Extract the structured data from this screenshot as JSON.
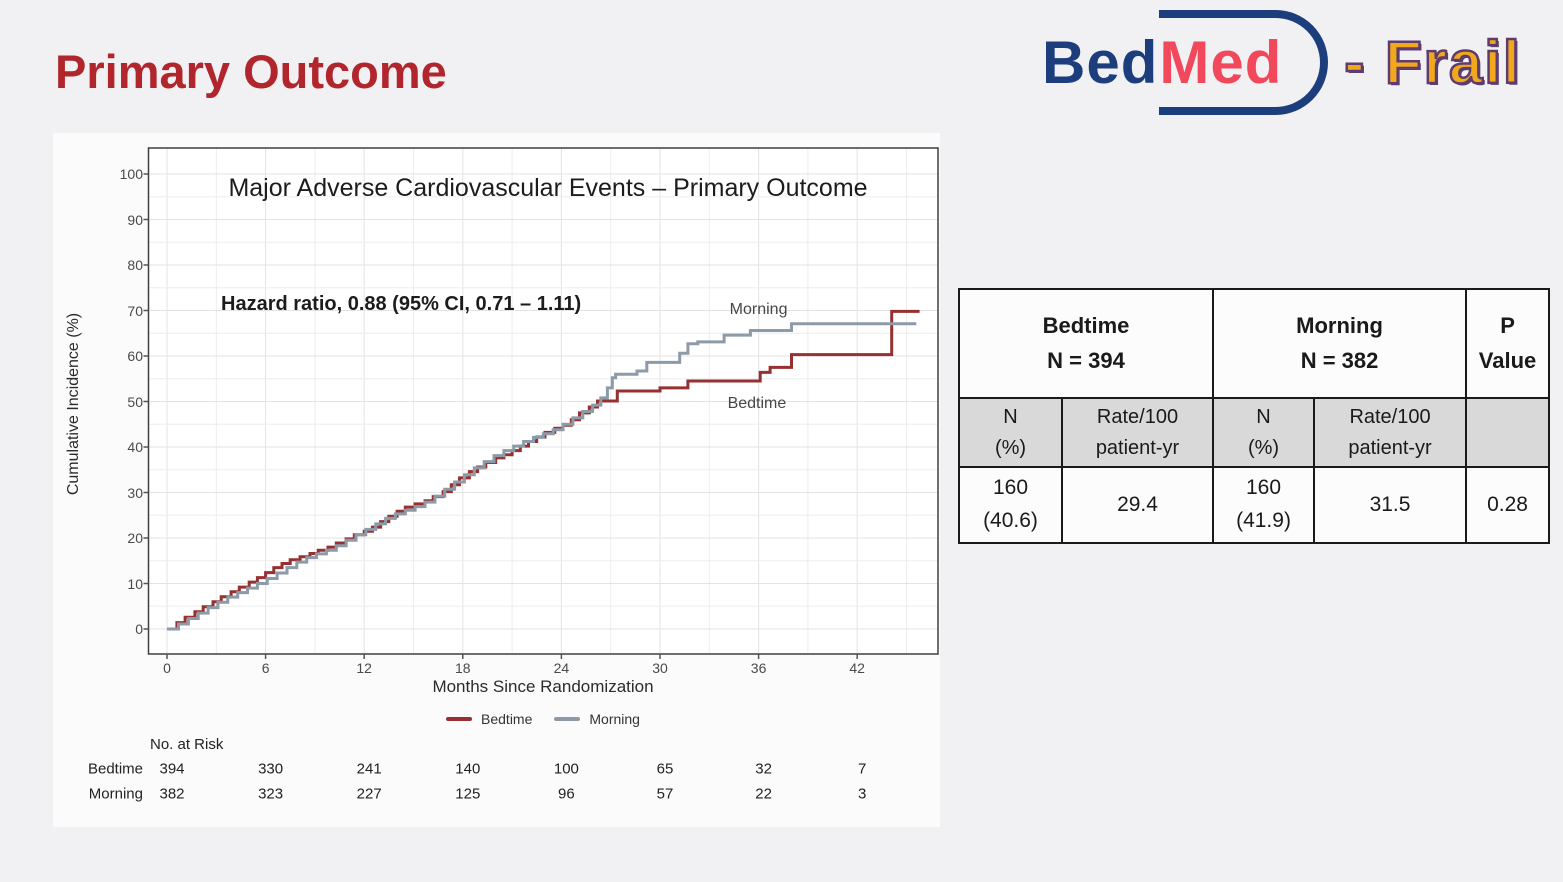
{
  "page": {
    "title": "Primary Outcome"
  },
  "logo": {
    "bed": "Bed",
    "med": "Med",
    "suffix": "- Frail"
  },
  "colors": {
    "slide_title": "#b1262d",
    "logo_navy": "#1d3e7c",
    "logo_red": "#f2485c",
    "logo_gold": "#f2a81d",
    "bedtime_line": "#963031",
    "morning_line": "#8d9aa7",
    "subheader_bg": "#d9d9d9"
  },
  "chart_data": {
    "type": "line",
    "title": "Major Adverse Cardiovascular Events – Primary Outcome",
    "annotation": "Hazard ratio, 0.88 (95% CI, 0.71 – 1.11)",
    "xlabel": "Months Since Randomization",
    "ylabel": "Cumulative Incidence (%)",
    "xlim": [
      0,
      46.9
    ],
    "ylim": [
      0,
      100
    ],
    "x_ticks": [
      0,
      6,
      12,
      18,
      24,
      30,
      36,
      42
    ],
    "y_ticks": [
      0,
      10,
      20,
      30,
      40,
      50,
      60,
      70,
      80,
      90,
      100
    ],
    "grid": true,
    "legend_position": "bottom",
    "series": [
      {
        "name": "Bedtime",
        "color": "#963031",
        "label_pos": {
          "x": 35.9,
          "y": 49.5
        },
        "points": [
          [
            0,
            0
          ],
          [
            0.6,
            1.4
          ],
          [
            1.1,
            2.6
          ],
          [
            1.7,
            3.8
          ],
          [
            2.2,
            4.9
          ],
          [
            2.8,
            6
          ],
          [
            3.3,
            7.1
          ],
          [
            3.9,
            8.2
          ],
          [
            4.4,
            9.2
          ],
          [
            5,
            10.3
          ],
          [
            5.5,
            11.3
          ],
          [
            6,
            12.4
          ],
          [
            6.5,
            13.5
          ],
          [
            7,
            14.4
          ],
          [
            7.5,
            15.2
          ],
          [
            8.1,
            15.9
          ],
          [
            8.7,
            16.6
          ],
          [
            9.2,
            17.3
          ],
          [
            9.8,
            18
          ],
          [
            10.3,
            18.9
          ],
          [
            10.9,
            19.8
          ],
          [
            11.4,
            20.7
          ],
          [
            12,
            21.5
          ],
          [
            12.5,
            22.4
          ],
          [
            13,
            23.6
          ],
          [
            13.5,
            24.8
          ],
          [
            14,
            25.9
          ],
          [
            14.5,
            26.8
          ],
          [
            15.1,
            27.5
          ],
          [
            15.7,
            28.2
          ],
          [
            16.2,
            29.1
          ],
          [
            16.8,
            30.2
          ],
          [
            17.3,
            31.7
          ],
          [
            17.8,
            33.2
          ],
          [
            18.4,
            34.6
          ],
          [
            18.9,
            35.6
          ],
          [
            19.4,
            36.6
          ],
          [
            20,
            37.6
          ],
          [
            20.5,
            38.3
          ],
          [
            21,
            39.2
          ],
          [
            21.5,
            40.2
          ],
          [
            22,
            41.2
          ],
          [
            22.5,
            42.2
          ],
          [
            23,
            43.2
          ],
          [
            23.6,
            44.1
          ],
          [
            24.1,
            44.8
          ],
          [
            24.6,
            46
          ],
          [
            25.1,
            47.5
          ],
          [
            25.7,
            48.8
          ],
          [
            26.2,
            50.1
          ],
          [
            27.4,
            52.3
          ],
          [
            30,
            53
          ],
          [
            31.7,
            54.5
          ],
          [
            36.1,
            56.4
          ],
          [
            36.7,
            57.5
          ],
          [
            38,
            60.3
          ],
          [
            44.1,
            69.8
          ],
          [
            45.8,
            69.8
          ]
        ]
      },
      {
        "name": "Morning",
        "color": "#8d9aa7",
        "label_pos": {
          "x": 36,
          "y": 70.2
        },
        "points": [
          [
            0,
            0
          ],
          [
            0.7,
            1.1
          ],
          [
            1.3,
            2.3
          ],
          [
            1.9,
            3.5
          ],
          [
            2.5,
            4.7
          ],
          [
            3.1,
            5.9
          ],
          [
            3.7,
            7
          ],
          [
            4.3,
            8
          ],
          [
            4.9,
            9
          ],
          [
            5.5,
            10
          ],
          [
            6.1,
            11.1
          ],
          [
            6.7,
            12.3
          ],
          [
            7.3,
            13.5
          ],
          [
            7.9,
            14.7
          ],
          [
            8.5,
            15.7
          ],
          [
            9.1,
            16.5
          ],
          [
            9.7,
            17.3
          ],
          [
            10.3,
            18.3
          ],
          [
            10.9,
            19.5
          ],
          [
            11.5,
            20.7
          ],
          [
            12.1,
            21.9
          ],
          [
            12.7,
            23.1
          ],
          [
            13.3,
            24.3
          ],
          [
            13.9,
            25.3
          ],
          [
            14.5,
            26.1
          ],
          [
            15.1,
            26.9
          ],
          [
            15.7,
            27.9
          ],
          [
            16.3,
            29.2
          ],
          [
            16.9,
            30.7
          ],
          [
            17.5,
            32.3
          ],
          [
            18.1,
            33.9
          ],
          [
            18.7,
            35.4
          ],
          [
            19.3,
            36.8
          ],
          [
            19.9,
            38.1
          ],
          [
            20.5,
            39.2
          ],
          [
            21.1,
            40.2
          ],
          [
            21.7,
            41.2
          ],
          [
            22.3,
            42.1
          ],
          [
            22.9,
            42.9
          ],
          [
            23.5,
            43.8
          ],
          [
            24.1,
            45
          ],
          [
            24.7,
            46.4
          ],
          [
            25.3,
            47.8
          ],
          [
            25.9,
            49.2
          ],
          [
            26.4,
            50.8
          ],
          [
            26.8,
            53
          ],
          [
            27.1,
            55.2
          ],
          [
            27.3,
            56
          ],
          [
            28.6,
            56.7
          ],
          [
            29.2,
            58.6
          ],
          [
            31.2,
            60.6
          ],
          [
            31.7,
            62.7
          ],
          [
            32.3,
            63.1
          ],
          [
            33.9,
            64.6
          ],
          [
            35.5,
            65.6
          ],
          [
            38,
            67.1
          ],
          [
            45.6,
            67.1
          ]
        ]
      }
    ],
    "risk_table": {
      "title": "No. at Risk",
      "rows": [
        {
          "label": "Bedtime",
          "values": [
            394,
            330,
            241,
            140,
            100,
            65,
            32,
            7
          ]
        },
        {
          "label": "Morning",
          "values": [
            382,
            323,
            227,
            125,
            96,
            57,
            22,
            3
          ]
        }
      ]
    }
  },
  "results_table": {
    "header": {
      "bedtime": "Bedtime\nN = 394",
      "morning": "Morning\nN = 382",
      "pvalue": "P\nValue"
    },
    "subheader": {
      "c1": "N\n(%)",
      "c2": "Rate/100\npatient-yr",
      "c3": "N\n(%)",
      "c4": "Rate/100\npatient-yr",
      "c5": ""
    },
    "values": {
      "c1": "160\n(40.6)",
      "c2": "29.4",
      "c3": "160\n(41.9)",
      "c4": "31.5",
      "c5": "0.28"
    }
  }
}
